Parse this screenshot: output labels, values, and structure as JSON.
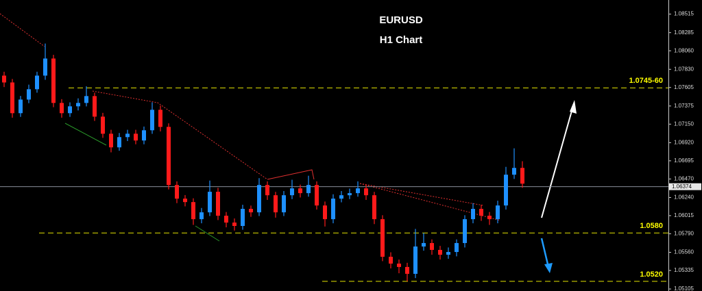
{
  "chart_data": {
    "type": "candlestick",
    "title": "EURUSD",
    "subtitle": "H1 Chart",
    "open": [
      1.07752,
      1.07667,
      1.07286,
      1.07455,
      1.07583,
      1.07752,
      1.07964,
      1.07413,
      1.07286,
      1.07371,
      1.07413,
      1.07498,
      1.07243,
      1.07031,
      1.06862,
      1.06989,
      1.07031,
      1.06947,
      1.07074,
      1.07328,
      1.07116,
      1.06395,
      1.06226,
      1.06183,
      1.05971,
      1.06056,
      1.06311,
      1.06014,
      1.05929,
      1.05887,
      1.06099,
      1.06056,
      1.06395,
      1.06268,
      1.06056,
      1.06268,
      1.06353,
      1.06294,
      1.06395,
      1.06141,
      1.05971,
      1.06226,
      1.06268,
      1.06294,
      1.06353,
      1.06268,
      1.05971,
      1.05505,
      1.0542,
      1.05378,
      1.05293,
      1.05632,
      1.05675,
      1.0559,
      1.0553,
      1.05564,
      1.05675,
      1.05971,
      1.06099,
      1.06014,
      1.05971,
      1.06141,
      1.06523,
      1.06607
    ],
    "high": [
      1.078,
      1.0771,
      1.075,
      1.0764,
      1.078,
      1.0815,
      1.0801,
      1.0746,
      1.0742,
      1.0747,
      1.0762,
      1.0754,
      1.0729,
      1.0708,
      1.0704,
      1.0708,
      1.0708,
      1.0712,
      1.0742,
      1.0738,
      1.0716,
      1.0644,
      1.0627,
      1.0623,
      1.0611,
      1.0645,
      1.0636,
      1.0606,
      1.0598,
      1.0615,
      1.0614,
      1.0648,
      1.0644,
      1.0631,
      1.0632,
      1.0646,
      1.064,
      1.0651,
      1.0644,
      1.0619,
      1.0628,
      1.0632,
      1.0635,
      1.0644,
      1.064,
      1.0631,
      1.0602,
      1.0556,
      1.0547,
      1.0543,
      1.0585,
      1.058,
      1.0572,
      1.0564,
      1.0562,
      1.0572,
      1.0602,
      1.0617,
      1.0615,
      1.0606,
      1.062,
      1.0662,
      1.0685,
      1.0669
    ],
    "low": [
      1.0761,
      1.0723,
      1.0724,
      1.0741,
      1.0754,
      1.077,
      1.0736,
      1.0723,
      1.0724,
      1.0732,
      1.0737,
      1.0719,
      1.0698,
      1.068,
      1.0682,
      1.0694,
      1.069,
      1.069,
      1.0703,
      1.0706,
      1.0634,
      1.0617,
      1.0613,
      1.059,
      1.0592,
      1.0601,
      1.0596,
      1.0587,
      1.0583,
      1.0584,
      1.06,
      1.0601,
      1.0621,
      1.0599,
      1.0601,
      1.0622,
      1.0624,
      1.0625,
      1.0609,
      1.0588,
      1.0592,
      1.0618,
      1.0622,
      1.0625,
      1.0621,
      1.0591,
      1.0545,
      1.0536,
      1.053,
      1.052,
      1.0524,
      1.0558,
      1.0553,
      1.0547,
      1.0548,
      1.0551,
      1.0562,
      1.0592,
      1.0595,
      1.059,
      1.0592,
      1.0609,
      1.0647,
      1.0636
    ],
    "close": [
      1.07667,
      1.07286,
      1.07455,
      1.07583,
      1.07752,
      1.07964,
      1.07413,
      1.07286,
      1.07371,
      1.07413,
      1.07498,
      1.07243,
      1.07031,
      1.06862,
      1.06989,
      1.07031,
      1.06947,
      1.07074,
      1.07328,
      1.07116,
      1.06395,
      1.06226,
      1.06183,
      1.05971,
      1.06056,
      1.06311,
      1.06014,
      1.05929,
      1.05887,
      1.06099,
      1.06056,
      1.06395,
      1.06268,
      1.06056,
      1.06268,
      1.06353,
      1.06294,
      1.06395,
      1.06141,
      1.05971,
      1.06226,
      1.06268,
      1.06294,
      1.06353,
      1.06268,
      1.05971,
      1.05505,
      1.0542,
      1.05378,
      1.05293,
      1.05632,
      1.05675,
      1.0559,
      1.0553,
      1.05564,
      1.05675,
      1.05971,
      1.06099,
      1.06014,
      1.05971,
      1.06141,
      1.06523,
      1.06607,
      1.06412
    ],
    "up_color": "#1e90ff",
    "down_color": "#ff1a1a",
    "ylim": [
      1.0508,
      1.0869
    ],
    "yticks": [
      1.08515,
      1.08285,
      {
        "value": 1.0806,
        "label": "1.08060"
      },
      {
        "value": 1.0783,
        "label": "1.07830"
      },
      1.07605,
      1.07375,
      {
        "value": 1.0715,
        "label": "1.07150"
      },
      {
        "value": 1.0692,
        "label": "1.06920"
      },
      1.06695,
      {
        "value": 1.0647,
        "label": "1.06470"
      },
      {
        "value": 1.0624,
        "label": "1.06240"
      },
      1.06015,
      {
        "value": 1.0579,
        "label": "1.05790"
      },
      {
        "value": 1.0556,
        "label": "1.05560"
      },
      1.05335,
      1.05105
    ],
    "current_price": 1.06374,
    "levels": [
      {
        "value": 1.076,
        "label": "1.0745-60"
      },
      {
        "value": 1.058,
        "label": "1.0580"
      },
      {
        "value": 1.052,
        "label": "1.0520"
      }
    ],
    "level_color": "#e6e600"
  }
}
